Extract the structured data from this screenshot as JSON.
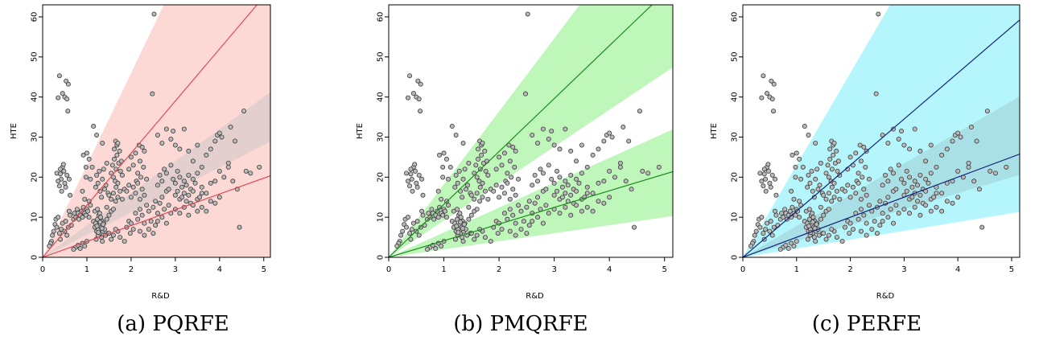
{
  "chart_data": [
    {
      "type": "scatter",
      "caption": "(a) PQRFE",
      "xlabel": "R&D",
      "ylabel": "HTE",
      "xlim": [
        0,
        5.15
      ],
      "ylim": [
        0,
        63
      ],
      "x_ticks": [
        0,
        1,
        2,
        3,
        4,
        5
      ],
      "y_ticks": [
        0,
        10,
        20,
        30,
        40,
        50,
        60
      ],
      "grid": false,
      "band_color": "#fdd9d6",
      "line_color": "#e04a58",
      "bands": [
        {
          "lower_slope": 0.0,
          "upper_slope": 23.0,
          "fill": "#fdd9d6"
        },
        {
          "lower_slope": 5.6,
          "upper_slope": 8.0,
          "fill": "#e3cfcd"
        }
      ],
      "lines": [
        {
          "name": "",
          "slope": 13.0,
          "intercept": 0
        },
        {
          "name": "",
          "slope": 3.95,
          "intercept": 0
        }
      ]
    },
    {
      "type": "scatter",
      "caption": "(b) PMQRFE",
      "xlabel": "R&D",
      "ylabel": "HTE",
      "xlim": [
        0,
        5.15
      ],
      "ylim": [
        0,
        63
      ],
      "x_ticks": [
        0,
        1,
        2,
        3,
        4,
        5
      ],
      "y_ticks": [
        0,
        10,
        20,
        30,
        40,
        50,
        60
      ],
      "grid": false,
      "band_color": "#bff7bb",
      "line_color": "#1e8a1e",
      "bands": [
        {
          "lower_slope": 9.2,
          "upper_slope": 18.2,
          "fill": "#bff7bb"
        },
        {
          "lower_slope": 2.0,
          "upper_slope": 6.2,
          "fill": "#bff7bb"
        }
      ],
      "lines": [
        {
          "name": "",
          "slope": 13.2,
          "intercept": 0
        },
        {
          "name": "",
          "slope": 4.15,
          "intercept": 0
        }
      ]
    },
    {
      "type": "scatter",
      "caption": "(c) PERFE",
      "xlabel": "R&D",
      "ylabel": "HTE",
      "xlim": [
        0,
        5.15
      ],
      "ylim": [
        0,
        63
      ],
      "x_ticks": [
        0,
        1,
        2,
        3,
        4,
        5
      ],
      "y_ticks": [
        0,
        10,
        20,
        30,
        40,
        50,
        60
      ],
      "grid": false,
      "band_color": "#b4f6fc",
      "line_color": "#14247e",
      "bands": [
        {
          "lower_slope": 2.2,
          "upper_slope": 23.0,
          "fill": "#b4f6fc"
        },
        {
          "lower_slope": 4.0,
          "upper_slope": 7.8,
          "fill": "#a8e0e6"
        }
      ],
      "lines": [
        {
          "name": "",
          "slope": 11.5,
          "intercept": 0
        },
        {
          "name": "",
          "slope": 5.0,
          "intercept": 0
        }
      ]
    }
  ],
  "points": [
    [
      0.38,
      45.3
    ],
    [
      0.35,
      39.8
    ],
    [
      0.45,
      40.9
    ],
    [
      0.5,
      40.0
    ],
    [
      0.55,
      39.5
    ],
    [
      0.53,
      44.0
    ],
    [
      0.58,
      43.2
    ],
    [
      0.57,
      36.5
    ],
    [
      2.52,
      60.7
    ],
    [
      2.48,
      40.8
    ],
    [
      1.15,
      32.7
    ],
    [
      1.22,
      30.5
    ],
    [
      1.35,
      28.5
    ],
    [
      1.65,
      29.0
    ],
    [
      1.68,
      28.0
    ],
    [
      0.32,
      21.0
    ],
    [
      0.4,
      20.8
    ],
    [
      0.42,
      19.5
    ],
    [
      0.45,
      22.5
    ],
    [
      0.48,
      21.5
    ],
    [
      0.5,
      18.5
    ],
    [
      0.52,
      17.5
    ],
    [
      0.55,
      20.5
    ],
    [
      0.35,
      19.0
    ],
    [
      0.38,
      17.8
    ],
    [
      0.43,
      16.5
    ],
    [
      0.6,
      19.5
    ],
    [
      0.62,
      15.5
    ],
    [
      0.4,
      22.0
    ],
    [
      0.47,
      23.2
    ],
    [
      0.25,
      6.5
    ],
    [
      0.28,
      8.2
    ],
    [
      0.3,
      9.5
    ],
    [
      0.32,
      7.5
    ],
    [
      0.35,
      10.0
    ],
    [
      0.38,
      6.0
    ],
    [
      0.4,
      4.5
    ],
    [
      0.42,
      7.0
    ],
    [
      0.45,
      8.5
    ],
    [
      0.5,
      6.5
    ],
    [
      0.52,
      9.0
    ],
    [
      0.55,
      5.5
    ],
    [
      0.58,
      7.5
    ],
    [
      0.6,
      11.5
    ],
    [
      0.62,
      10.5
    ],
    [
      0.65,
      8.0
    ],
    [
      0.2,
      4.0
    ],
    [
      0.22,
      5.5
    ],
    [
      0.18,
      3.5
    ],
    [
      0.15,
      2.8
    ],
    [
      0.7,
      9.5
    ],
    [
      0.72,
      11.0
    ],
    [
      0.75,
      10.0
    ],
    [
      0.78,
      12.0
    ],
    [
      0.8,
      11.0
    ],
    [
      0.82,
      9.5
    ],
    [
      0.85,
      10.5
    ],
    [
      0.88,
      11.5
    ],
    [
      0.9,
      10.0
    ],
    [
      0.92,
      12.5
    ],
    [
      0.95,
      11.0
    ],
    [
      0.98,
      10.5
    ],
    [
      1.0,
      12.0
    ],
    [
      1.02,
      11.5
    ],
    [
      1.05,
      10.0
    ],
    [
      1.08,
      13.0
    ],
    [
      0.75,
      2.5
    ],
    [
      0.8,
      3.0
    ],
    [
      0.85,
      2.2
    ],
    [
      0.9,
      3.5
    ],
    [
      0.95,
      2.8
    ],
    [
      1.0,
      4.0
    ],
    [
      0.7,
      2.0
    ],
    [
      0.92,
      25.5
    ],
    [
      1.0,
      26.0
    ],
    [
      1.05,
      24.5
    ],
    [
      0.98,
      22.5
    ],
    [
      1.15,
      9.0
    ],
    [
      1.18,
      7.5
    ],
    [
      1.2,
      8.5
    ],
    [
      1.22,
      6.5
    ],
    [
      1.24,
      9.5
    ],
    [
      1.26,
      7.0
    ],
    [
      1.28,
      8.0
    ],
    [
      1.3,
      6.0
    ],
    [
      1.32,
      7.5
    ],
    [
      1.34,
      9.0
    ],
    [
      1.36,
      6.5
    ],
    [
      1.38,
      8.5
    ],
    [
      1.4,
      7.0
    ],
    [
      1.25,
      5.5
    ],
    [
      1.27,
      10.5
    ],
    [
      1.33,
      5.0
    ],
    [
      1.21,
      4.5
    ],
    [
      1.29,
      11.0
    ],
    [
      1.35,
      4.0
    ],
    [
      1.42,
      5.5
    ],
    [
      1.45,
      9.5
    ],
    [
      1.48,
      6.0
    ],
    [
      1.18,
      11.5
    ],
    [
      1.24,
      12.0
    ],
    [
      1.3,
      8.8
    ],
    [
      1.26,
      6.2
    ],
    [
      1.34,
      7.2
    ],
    [
      1.31,
      10.0
    ],
    [
      1.23,
      7.8
    ],
    [
      1.37,
      8.2
    ],
    [
      1.2,
      17.5
    ],
    [
      1.25,
      18.5
    ],
    [
      1.3,
      16.5
    ],
    [
      1.35,
      19.5
    ],
    [
      1.4,
      17.0
    ],
    [
      1.22,
      20.5
    ],
    [
      1.28,
      21.5
    ],
    [
      1.33,
      15.0
    ],
    [
      1.38,
      22.0
    ],
    [
      1.43,
      18.0
    ],
    [
      1.45,
      23.5
    ],
    [
      1.48,
      16.0
    ],
    [
      1.55,
      21.0
    ],
    [
      1.58,
      23.0
    ],
    [
      1.6,
      20.0
    ],
    [
      1.62,
      24.5
    ],
    [
      1.64,
      19.0
    ],
    [
      1.66,
      22.0
    ],
    [
      1.68,
      25.5
    ],
    [
      1.7,
      18.5
    ],
    [
      1.72,
      23.5
    ],
    [
      1.74,
      26.5
    ],
    [
      1.76,
      21.5
    ],
    [
      1.78,
      24.0
    ],
    [
      1.8,
      20.5
    ],
    [
      1.62,
      27.0
    ],
    [
      1.7,
      28.5
    ],
    [
      1.66,
      17.5
    ],
    [
      1.5,
      15.5
    ],
    [
      1.55,
      14.5
    ],
    [
      1.6,
      16.0
    ],
    [
      1.65,
      14.0
    ],
    [
      1.7,
      15.0
    ],
    [
      1.75,
      16.5
    ],
    [
      1.8,
      14.5
    ],
    [
      1.85,
      17.0
    ],
    [
      1.55,
      11.5
    ],
    [
      1.6,
      12.0
    ],
    [
      1.5,
      10.5
    ],
    [
      1.45,
      12.5
    ],
    [
      1.5,
      6.0
    ],
    [
      1.6,
      5.5
    ],
    [
      1.7,
      6.5
    ],
    [
      1.55,
      4.5
    ],
    [
      1.65,
      7.0
    ],
    [
      1.75,
      5.0
    ],
    [
      1.85,
      4.0
    ],
    [
      1.9,
      7.5
    ],
    [
      1.95,
      9.0
    ],
    [
      2.0,
      8.5
    ],
    [
      1.98,
      6.0
    ],
    [
      2.05,
      7.0
    ],
    [
      1.95,
      22.0
    ],
    [
      2.0,
      25.0
    ],
    [
      2.05,
      23.0
    ],
    [
      2.1,
      26.0
    ],
    [
      2.15,
      21.0
    ],
    [
      2.2,
      24.0
    ],
    [
      2.25,
      27.5
    ],
    [
      2.22,
      20.0
    ],
    [
      2.18,
      28.0
    ],
    [
      2.12,
      19.0
    ],
    [
      2.28,
      22.5
    ],
    [
      2.3,
      26.5
    ],
    [
      2.0,
      15.0
    ],
    [
      2.05,
      17.5
    ],
    [
      2.1,
      16.0
    ],
    [
      2.15,
      18.5
    ],
    [
      2.2,
      14.5
    ],
    [
      2.25,
      17.0
    ],
    [
      2.3,
      15.5
    ],
    [
      2.35,
      19.5
    ],
    [
      1.9,
      16.5
    ],
    [
      1.95,
      18.0
    ],
    [
      2.1,
      11.0
    ],
    [
      2.15,
      9.5
    ],
    [
      2.2,
      12.0
    ],
    [
      2.25,
      10.5
    ],
    [
      2.3,
      8.5
    ],
    [
      2.35,
      13.0
    ],
    [
      2.4,
      11.5
    ],
    [
      2.45,
      9.0
    ],
    [
      2.2,
      6.5
    ],
    [
      2.3,
      5.5
    ],
    [
      2.4,
      7.0
    ],
    [
      2.5,
      6.0
    ],
    [
      2.55,
      8.0
    ],
    [
      2.5,
      12.5
    ],
    [
      2.55,
      14.0
    ],
    [
      2.6,
      11.0
    ],
    [
      2.65,
      13.5
    ],
    [
      2.7,
      15.0
    ],
    [
      2.75,
      12.0
    ],
    [
      2.8,
      16.5
    ],
    [
      2.85,
      13.0
    ],
    [
      2.6,
      9.0
    ],
    [
      2.7,
      10.0
    ],
    [
      2.8,
      8.5
    ],
    [
      2.9,
      11.0
    ],
    [
      2.6,
      30.5
    ],
    [
      2.7,
      28.5
    ],
    [
      2.8,
      32.0
    ],
    [
      2.9,
      29.5
    ],
    [
      2.95,
      31.5
    ],
    [
      3.0,
      28.0
    ],
    [
      3.2,
      32.0
    ],
    [
      3.1,
      27.0
    ],
    [
      2.6,
      18.0
    ],
    [
      2.65,
      20.5
    ],
    [
      2.7,
      19.0
    ],
    [
      2.75,
      22.0
    ],
    [
      2.8,
      21.0
    ],
    [
      2.85,
      17.0
    ],
    [
      2.9,
      23.0
    ],
    [
      2.95,
      19.5
    ],
    [
      3.0,
      18.5
    ],
    [
      3.05,
      21.5
    ],
    [
      3.1,
      20.0
    ],
    [
      3.15,
      17.5
    ],
    [
      3.2,
      19.0
    ],
    [
      3.25,
      18.0
    ],
    [
      3.3,
      20.5
    ],
    [
      3.35,
      17.0
    ],
    [
      3.4,
      19.5
    ],
    [
      3.45,
      18.5
    ],
    [
      3.5,
      21.0
    ],
    [
      3.0,
      15.5
    ],
    [
      3.05,
      16.5
    ],
    [
      3.1,
      14.5
    ],
    [
      3.15,
      15.0
    ],
    [
      3.2,
      16.0
    ],
    [
      3.25,
      14.0
    ],
    [
      3.3,
      15.5
    ],
    [
      3.35,
      13.5
    ],
    [
      3.4,
      16.5
    ],
    [
      3.5,
      14.5
    ],
    [
      3.55,
      15.0
    ],
    [
      3.6,
      16.0
    ],
    [
      3.0,
      12.0
    ],
    [
      3.1,
      11.0
    ],
    [
      3.2,
      12.5
    ],
    [
      3.3,
      10.5
    ],
    [
      3.4,
      13.0
    ],
    [
      3.5,
      11.5
    ],
    [
      3.6,
      12.5
    ],
    [
      3.3,
      26.5
    ],
    [
      3.4,
      24.0
    ],
    [
      3.5,
      28.0
    ],
    [
      3.6,
      22.5
    ],
    [
      3.7,
      25.5
    ],
    [
      3.8,
      27.0
    ],
    [
      3.9,
      29.0
    ],
    [
      3.95,
      30.5
    ],
    [
      3.6,
      17.5
    ],
    [
      3.7,
      16.0
    ],
    [
      3.8,
      18.5
    ],
    [
      3.9,
      19.0
    ],
    [
      4.0,
      21.5
    ],
    [
      4.1,
      20.0
    ],
    [
      4.2,
      22.5
    ],
    [
      4.3,
      19.0
    ],
    [
      3.8,
      14.0
    ],
    [
      3.9,
      13.5
    ],
    [
      4.0,
      15.0
    ],
    [
      3.7,
      11.5
    ],
    [
      4.0,
      31.0
    ],
    [
      4.05,
      30.0
    ],
    [
      4.25,
      32.5
    ],
    [
      4.35,
      29.0
    ],
    [
      4.55,
      36.5
    ],
    [
      4.4,
      17.0
    ],
    [
      4.45,
      7.5
    ],
    [
      4.6,
      21.5
    ],
    [
      4.7,
      21.0
    ],
    [
      4.9,
      22.5
    ],
    [
      4.2,
      23.5
    ],
    [
      0.98,
      20.0
    ],
    [
      1.08,
      19.5
    ],
    [
      1.12,
      22.5
    ],
    [
      0.9,
      16.5
    ],
    [
      1.05,
      14.0
    ],
    [
      0.95,
      14.5
    ]
  ]
}
